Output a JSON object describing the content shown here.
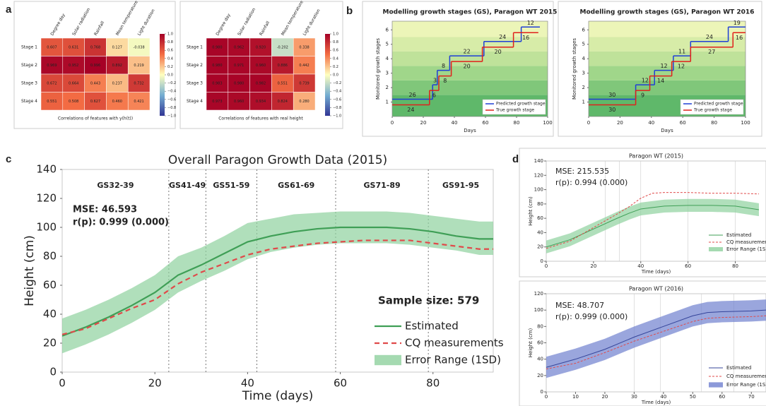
{
  "chart_data": [
    {
      "panel": "a",
      "type": "heatmap",
      "rows": [
        "Stage 1",
        "Stage 2",
        "Stage 3",
        "Stage 4"
      ],
      "columns": [
        "Degree day",
        "Solar radiation",
        "Rainfall",
        "Mean temperature",
        "Light duration"
      ],
      "values": [
        [
          0.607,
          0.631,
          0.768,
          0.127,
          -0.038
        ],
        [
          0.969,
          0.952,
          0.996,
          0.892,
          0.219
        ],
        [
          0.672,
          0.664,
          0.443,
          0.237,
          0.732
        ],
        [
          0.551,
          0.508,
          0.627,
          0.46,
          0.421
        ]
      ],
      "value_labels": [
        [
          "0.607",
          "0.631",
          "0.768",
          "0.127",
          "-0.038"
        ],
        [
          "0.969",
          "0.952",
          "0.996",
          "0.892",
          "0.219"
        ],
        [
          "0.672",
          "0.664",
          "0.443",
          "0.237",
          "0.732"
        ],
        [
          "0.551",
          "0.508",
          "0.627",
          "0.460",
          "0.421"
        ]
      ],
      "xlabel": "Correlations of features with y(h(t))",
      "zlim": [
        -1,
        1
      ],
      "zticks": [
        {
          "value": 1,
          "label": "1.0"
        },
        {
          "value": 0.8,
          "label": "0.8"
        },
        {
          "value": 0.6,
          "label": "0.6"
        },
        {
          "value": 0.4,
          "label": "0.4"
        },
        {
          "value": 0.2,
          "label": "0.2"
        },
        {
          "value": 0,
          "label": "0.0"
        },
        {
          "value": -0.2,
          "label": "−0.2"
        },
        {
          "value": -0.4,
          "label": "−0.4"
        },
        {
          "value": -0.6,
          "label": "−0.6"
        },
        {
          "value": -0.8,
          "label": "−0.8"
        },
        {
          "value": -1,
          "label": "−1.0"
        }
      ],
      "colormap": [
        "#313695",
        "#74add1",
        "#ffffbf",
        "#f46d43",
        "#a50026"
      ]
    },
    {
      "type": "heatmap",
      "rows": [
        "Stage 1",
        "Stage 2",
        "Stage 3",
        "Stage 4"
      ],
      "columns": [
        "Degree day",
        "Solar radiation",
        "Rainfall",
        "Mean temperature",
        "Light duration"
      ],
      "values": [
        [
          0.98,
          0.962,
          0.92,
          -0.202,
          0.338
        ],
        [
          0.98,
          0.971,
          0.96,
          0.886,
          0.442
        ],
        [
          0.983,
          0.98,
          0.982,
          0.551,
          0.739
        ],
        [
          0.973,
          0.96,
          0.934,
          0.824,
          0.28
        ]
      ],
      "value_labels": [
        [
          "0.980",
          "0.962",
          "0.920",
          "-0.202",
          "0.338"
        ],
        [
          "0.980",
          "0.971",
          "0.960",
          "0.886",
          "0.442"
        ],
        [
          "0.983",
          "0.980",
          "0.982",
          "0.551",
          "0.739"
        ],
        [
          "0.973",
          "0.960",
          "0.934",
          "0.824",
          "0.280"
        ]
      ],
      "xlabel": "Correlations of features with real height",
      "zlim": [
        -1,
        1
      ],
      "zticks": [
        {
          "value": 1,
          "label": "1.0"
        },
        {
          "value": 0.8,
          "label": "0.8"
        },
        {
          "value": 0.6,
          "label": "0.6"
        },
        {
          "value": 0.4,
          "label": "0.4"
        },
        {
          "value": 0.2,
          "label": "0.2"
        },
        {
          "value": 0,
          "label": "0.0"
        },
        {
          "value": -0.2,
          "label": "−0.2"
        },
        {
          "value": -0.4,
          "label": "−0.4"
        },
        {
          "value": -0.6,
          "label": "−0.6"
        },
        {
          "value": -0.8,
          "label": "−0.8"
        },
        {
          "value": -1,
          "label": "−1.0"
        }
      ],
      "colormap": [
        "#313695",
        "#74add1",
        "#ffffbf",
        "#f46d43",
        "#a50026"
      ]
    },
    {
      "panel": "b",
      "type": "step",
      "title": "Modelling growth stages (GS), Paragon WT 2015",
      "xlabel": "Days",
      "ylabel": "Monitored growth stages",
      "xlim": [
        0,
        100
      ],
      "xticks": [
        0,
        20,
        40,
        60,
        80,
        100
      ],
      "ylim": [
        0,
        6.6
      ],
      "yticks": [
        1,
        2,
        3,
        4,
        5,
        6
      ],
      "series": [
        {
          "name": "Predicted growth stage",
          "color": "#1f3fd6",
          "values": [
            1,
            2,
            3,
            4,
            5,
            6
          ],
          "durations": [
            26,
            3,
            8,
            22,
            24,
            12
          ]
        },
        {
          "name": "True growth stage",
          "color": "#e0201b",
          "values": [
            1,
            2,
            3,
            4,
            5,
            6
          ],
          "durations": [
            24,
            6,
            8,
            20,
            20,
            16
          ]
        }
      ]
    },
    {
      "type": "step",
      "title": "Modelling growth stages (GS), Paragon WT 2016",
      "xlabel": "Days",
      "ylabel": "Monitored growth stages",
      "xlim": [
        0,
        100
      ],
      "xticks": [
        0,
        20,
        40,
        60,
        80,
        100
      ],
      "ylim": [
        0,
        6.6
      ],
      "yticks": [
        1,
        2,
        3,
        4,
        5,
        6
      ],
      "series": [
        {
          "name": "Predicted growth stage",
          "color": "#1f3fd6",
          "values": [
            1,
            2,
            3,
            4,
            5,
            6
          ],
          "durations": [
            30,
            12,
            12,
            11,
            24,
            19
          ]
        },
        {
          "name": "True growth stage",
          "color": "#e0201b",
          "values": [
            1,
            2,
            3,
            4,
            5,
            6
          ],
          "durations": [
            30,
            9,
            14,
            12,
            27,
            16
          ]
        }
      ]
    },
    {
      "panel": "c",
      "type": "line",
      "title": "Overall Paragon Growth Data (2015)",
      "xlabel": "Time (days)",
      "ylabel": "Height (cm)",
      "xlim": [
        0,
        93
      ],
      "xticks": [
        0,
        20,
        40,
        60,
        80
      ],
      "ylim": [
        0,
        140
      ],
      "yticks": [
        0,
        20,
        40,
        60,
        80,
        100,
        120,
        140
      ],
      "x": [
        0,
        5,
        10,
        15,
        20,
        25,
        30,
        35,
        40,
        45,
        50,
        55,
        60,
        65,
        70,
        75,
        80,
        85,
        90,
        93
      ],
      "series": [
        {
          "name": "Estimated",
          "color": "#3f9f56",
          "values": [
            25,
            31,
            38,
            46,
            55,
            67,
            74,
            82,
            90,
            94,
            97,
            99,
            100,
            100,
            100,
            99,
            97,
            94,
            92,
            92
          ]
        },
        {
          "name": "CQ measurements",
          "color": "#e04a4a",
          "dash": true,
          "values": [
            26,
            30,
            37,
            44,
            50,
            61,
            69,
            75,
            81,
            85,
            87,
            89,
            90,
            91,
            91,
            91,
            89,
            87,
            85,
            85
          ]
        },
        {
          "name": "Error Range (1SD)",
          "color": "#8fd19e",
          "lower": [
            13,
            19,
            26,
            34,
            43,
            55,
            63,
            70,
            78,
            83,
            86,
            88,
            89,
            89,
            89,
            88,
            86,
            84,
            81,
            81
          ],
          "upper": [
            37,
            43,
            50,
            58,
            67,
            80,
            86,
            94,
            103,
            106,
            109,
            110,
            111,
            111,
            111,
            110,
            108,
            106,
            104,
            104
          ]
        }
      ],
      "stage_boundaries": [
        23,
        31,
        42,
        59,
        79
      ],
      "stage_labels": [
        "GS32-39",
        "GS41-49",
        "GS51-59",
        "GS61-69",
        "GS71-89",
        "GS91-95"
      ],
      "annotations": [
        "MSE: 46.593",
        "r(p): 0.999 (0.000)",
        "Sample size: 579"
      ]
    },
    {
      "panel": "d",
      "type": "line",
      "title": "Paragon WT (2015)",
      "xlabel": "Time (days)",
      "ylabel": "Height (cm)",
      "xlim": [
        0,
        93
      ],
      "xticks": [
        0,
        20,
        40,
        60,
        80
      ],
      "ylim": [
        0,
        140
      ],
      "yticks": [
        0,
        20,
        40,
        60,
        80,
        100,
        120,
        140
      ],
      "x": [
        0,
        10,
        20,
        30,
        35,
        40,
        45,
        50,
        60,
        70,
        80,
        90
      ],
      "series": [
        {
          "name": "Estimated",
          "color": "#3f9f56",
          "values": [
            20,
            30,
            45,
            60,
            67,
            73,
            75,
            77,
            78,
            78,
            77,
            72
          ]
        },
        {
          "name": "CQ measurements",
          "color": "#e04a4a",
          "dash": true,
          "values": [
            18,
            28,
            47,
            66,
            76,
            88,
            95,
            96,
            96,
            95,
            95,
            94
          ]
        },
        {
          "name": "Error Range (1SD)",
          "color": "#8fd19e",
          "lower": [
            11,
            21,
            36,
            51,
            58,
            64,
            66,
            68,
            69,
            69,
            68,
            63
          ],
          "upper": [
            29,
            39,
            54,
            69,
            76,
            82,
            84,
            86,
            87,
            87,
            86,
            81
          ]
        }
      ],
      "stage_boundaries": [
        25,
        31,
        40,
        60,
        80
      ],
      "annotations": [
        "MSE: 215.535",
        "r(p): 0.994 (0.000)"
      ]
    },
    {
      "type": "line",
      "title": "Paragon WT (2016)",
      "xlabel": "Time (days)",
      "ylabel": "Height (cm)",
      "xlim": [
        0,
        75
      ],
      "xticks": [
        0,
        10,
        20,
        30,
        40,
        50,
        60,
        70
      ],
      "ylim": [
        0,
        120
      ],
      "yticks": [
        0,
        20,
        40,
        60,
        80,
        100,
        120
      ],
      "x": [
        0,
        10,
        20,
        30,
        40,
        50,
        55,
        60,
        70,
        75
      ],
      "series": [
        {
          "name": "Estimated",
          "color": "#34449a",
          "values": [
            30,
            40,
            52,
            67,
            80,
            93,
            97,
            98,
            99,
            100
          ]
        },
        {
          "name": "CQ measurements",
          "color": "#e04a4a",
          "dash": true,
          "values": [
            28,
            35,
            48,
            62,
            74,
            86,
            90,
            91,
            92,
            93
          ]
        },
        {
          "name": "Error Range (1SD)",
          "color": "#6f80cf",
          "lower": [
            17,
            27,
            39,
            54,
            67,
            80,
            84,
            85,
            86,
            87
          ],
          "upper": [
            43,
            53,
            65,
            80,
            93,
            106,
            110,
            111,
            112,
            113
          ]
        }
      ],
      "stage_boundaries": [
        30,
        39,
        53,
        64
      ],
      "annotations": [
        "MSE: 48.707",
        "r(p): 0.999 (0.000)"
      ]
    }
  ]
}
